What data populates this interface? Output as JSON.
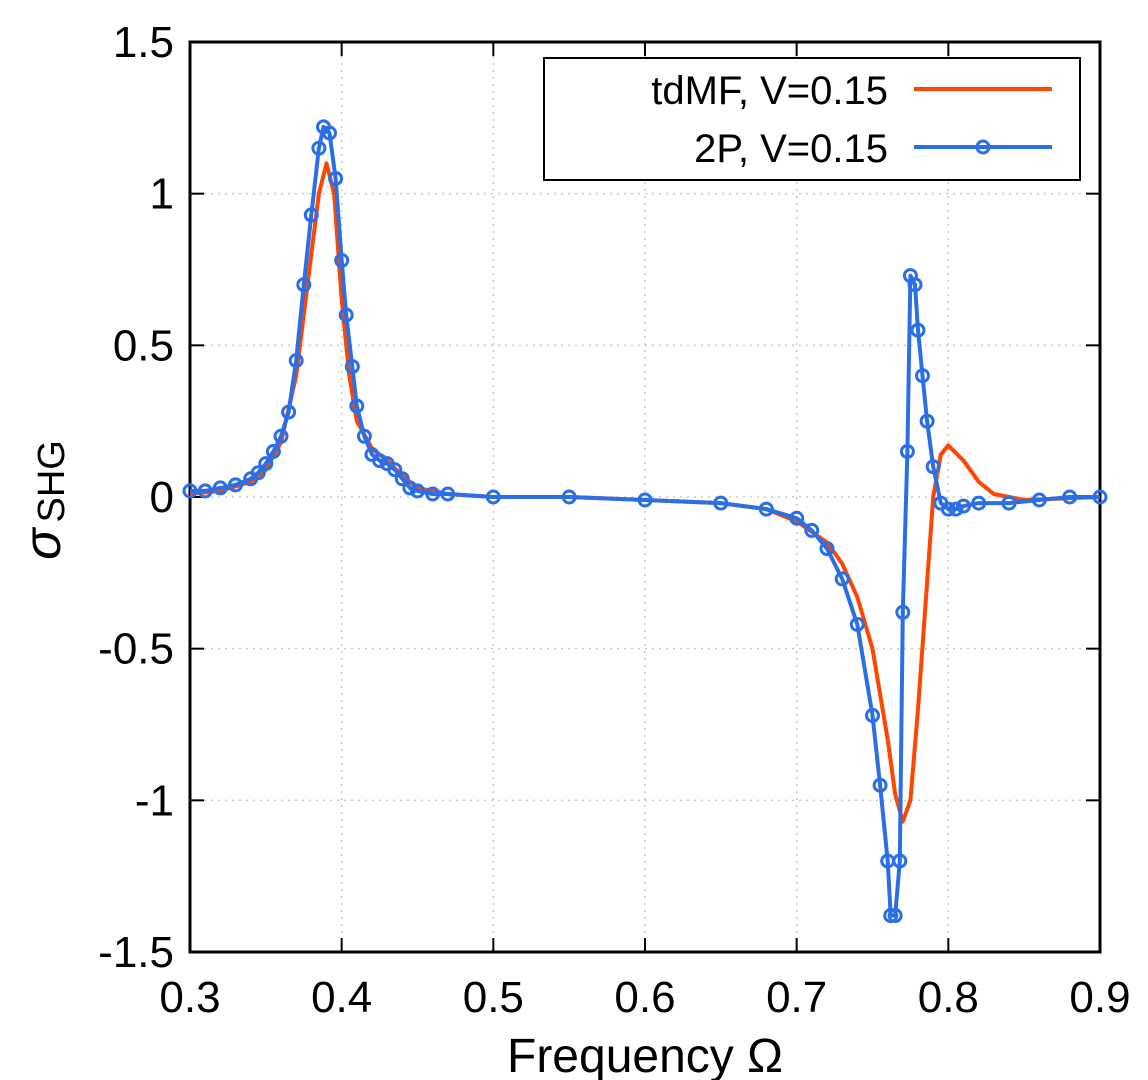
{
  "chart_data": {
    "type": "line",
    "xlabel": "Frequency  Ω",
    "ylabel_main": "σ",
    "ylabel_sub": "SHG",
    "xlim": [
      0.3,
      0.9
    ],
    "ylim": [
      -1.5,
      1.5
    ],
    "xticks": [
      0.3,
      0.4,
      0.5,
      0.6,
      0.7,
      0.8,
      0.9
    ],
    "xtick_labels": [
      "0.3",
      "0.4",
      "0.5",
      "0.6",
      "0.7",
      "0.8",
      "0.9"
    ],
    "yticks": [
      -1.5,
      -1,
      -0.5,
      0,
      0.5,
      1,
      1.5
    ],
    "ytick_labels": [
      "-1.5",
      "-1",
      "-0.5",
      "0",
      "0.5",
      "1",
      "1.5"
    ],
    "grid": true,
    "legend_position": "top-right",
    "series": [
      {
        "name": "tdMF, V=0.15",
        "color": "#ff4500",
        "marker": false,
        "points": [
          [
            0.3,
            0.01
          ],
          [
            0.32,
            0.02
          ],
          [
            0.34,
            0.05
          ],
          [
            0.35,
            0.09
          ],
          [
            0.36,
            0.18
          ],
          [
            0.37,
            0.4
          ],
          [
            0.38,
            0.8
          ],
          [
            0.385,
            1.0
          ],
          [
            0.39,
            1.1
          ],
          [
            0.395,
            1.0
          ],
          [
            0.4,
            0.65
          ],
          [
            0.405,
            0.4
          ],
          [
            0.41,
            0.25
          ],
          [
            0.42,
            0.16
          ],
          [
            0.43,
            0.12
          ],
          [
            0.44,
            0.07
          ],
          [
            0.45,
            0.03
          ],
          [
            0.47,
            0.01
          ],
          [
            0.5,
            0.0
          ],
          [
            0.55,
            0.0
          ],
          [
            0.6,
            -0.01
          ],
          [
            0.65,
            -0.02
          ],
          [
            0.68,
            -0.04
          ],
          [
            0.7,
            -0.08
          ],
          [
            0.72,
            -0.15
          ],
          [
            0.73,
            -0.22
          ],
          [
            0.74,
            -0.33
          ],
          [
            0.75,
            -0.5
          ],
          [
            0.76,
            -0.8
          ],
          [
            0.765,
            -0.98
          ],
          [
            0.77,
            -1.07
          ],
          [
            0.775,
            -1.0
          ],
          [
            0.78,
            -0.7
          ],
          [
            0.785,
            -0.35
          ],
          [
            0.79,
            0.0
          ],
          [
            0.795,
            0.14
          ],
          [
            0.8,
            0.17
          ],
          [
            0.81,
            0.12
          ],
          [
            0.82,
            0.05
          ],
          [
            0.83,
            0.01
          ],
          [
            0.85,
            -0.01
          ],
          [
            0.9,
            0.0
          ]
        ]
      },
      {
        "name": "2P, V=0.15",
        "color": "#2a6fe8",
        "marker": true,
        "points": [
          [
            0.3,
            0.02
          ],
          [
            0.31,
            0.02
          ],
          [
            0.32,
            0.03
          ],
          [
            0.33,
            0.04
          ],
          [
            0.34,
            0.06
          ],
          [
            0.345,
            0.08
          ],
          [
            0.35,
            0.11
          ],
          [
            0.355,
            0.15
          ],
          [
            0.36,
            0.2
          ],
          [
            0.365,
            0.28
          ],
          [
            0.37,
            0.45
          ],
          [
            0.375,
            0.7
          ],
          [
            0.38,
            0.93
          ],
          [
            0.385,
            1.15
          ],
          [
            0.388,
            1.22
          ],
          [
            0.392,
            1.2
          ],
          [
            0.396,
            1.05
          ],
          [
            0.4,
            0.78
          ],
          [
            0.403,
            0.6
          ],
          [
            0.407,
            0.43
          ],
          [
            0.41,
            0.3
          ],
          [
            0.415,
            0.2
          ],
          [
            0.42,
            0.14
          ],
          [
            0.425,
            0.12
          ],
          [
            0.43,
            0.11
          ],
          [
            0.435,
            0.09
          ],
          [
            0.44,
            0.06
          ],
          [
            0.445,
            0.03
          ],
          [
            0.45,
            0.02
          ],
          [
            0.46,
            0.01
          ],
          [
            0.47,
            0.01
          ],
          [
            0.5,
            0.0
          ],
          [
            0.55,
            0.0
          ],
          [
            0.6,
            -0.01
          ],
          [
            0.65,
            -0.02
          ],
          [
            0.68,
            -0.04
          ],
          [
            0.7,
            -0.07
          ],
          [
            0.71,
            -0.11
          ],
          [
            0.72,
            -0.17
          ],
          [
            0.73,
            -0.27
          ],
          [
            0.74,
            -0.42
          ],
          [
            0.75,
            -0.72
          ],
          [
            0.755,
            -0.95
          ],
          [
            0.76,
            -1.2
          ],
          [
            0.762,
            -1.38
          ],
          [
            0.765,
            -1.38
          ],
          [
            0.768,
            -1.2
          ],
          [
            0.77,
            -0.38
          ],
          [
            0.773,
            0.15
          ],
          [
            0.775,
            0.73
          ],
          [
            0.778,
            0.7
          ],
          [
            0.78,
            0.55
          ],
          [
            0.783,
            0.4
          ],
          [
            0.786,
            0.25
          ],
          [
            0.79,
            0.1
          ],
          [
            0.795,
            -0.02
          ],
          [
            0.8,
            -0.04
          ],
          [
            0.805,
            -0.04
          ],
          [
            0.81,
            -0.03
          ],
          [
            0.82,
            -0.02
          ],
          [
            0.84,
            -0.02
          ],
          [
            0.86,
            -0.01
          ],
          [
            0.88,
            0.0
          ],
          [
            0.9,
            0.0
          ]
        ]
      }
    ]
  }
}
